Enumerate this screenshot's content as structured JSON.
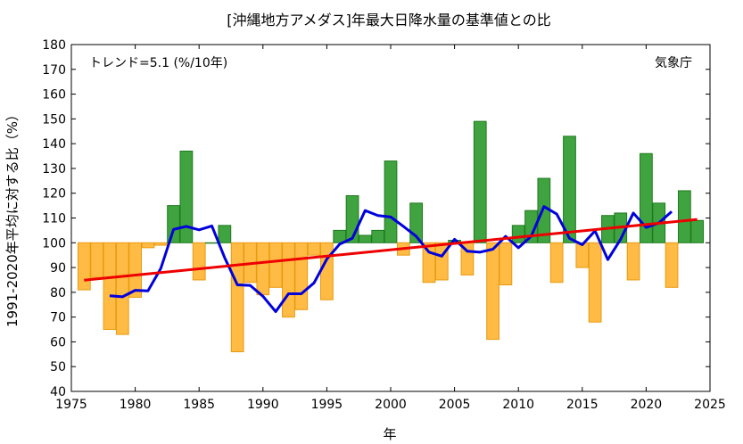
{
  "chart_data": {
    "type": "bar",
    "title": "[沖縄地方アメダス]年最大日降水量の基準値との比",
    "xlabel": "年",
    "ylabel": "1991-2020年平均に対する比（%）",
    "trend_label": "トレンド=5.1 (%/10年)",
    "source_label": "気象庁",
    "xlim": [
      1975,
      2025
    ],
    "ylim": [
      40,
      180
    ],
    "baseline": 100,
    "x_ticks": [
      1975,
      1980,
      1985,
      1990,
      1995,
      2000,
      2005,
      2010,
      2015,
      2020,
      2025
    ],
    "y_ticks": [
      40,
      50,
      60,
      70,
      80,
      90,
      100,
      110,
      120,
      130,
      140,
      150,
      160,
      170,
      180
    ],
    "grid": false,
    "colors": {
      "above": "#3fa33f",
      "above_edge": "#1f7a1f",
      "below": "#ffbb44",
      "below_edge": "#e89a10",
      "moving_average": "#0000dd",
      "trend": "#ee0000"
    },
    "years": [
      1976,
      1977,
      1978,
      1979,
      1980,
      1981,
      1982,
      1983,
      1984,
      1985,
      1986,
      1987,
      1988,
      1989,
      1990,
      1991,
      1992,
      1993,
      1994,
      1995,
      1996,
      1997,
      1998,
      1999,
      2000,
      2001,
      2002,
      2003,
      2004,
      2005,
      2006,
      2007,
      2008,
      2009,
      2010,
      2011,
      2012,
      2013,
      2014,
      2015,
      2016,
      2017,
      2018,
      2019,
      2020,
      2021,
      2022,
      2023,
      2024
    ],
    "values": [
      81,
      86,
      65,
      63,
      78,
      98,
      99,
      115,
      137,
      85,
      100,
      107,
      56,
      84,
      79,
      82,
      70,
      73,
      95,
      77,
      105,
      119,
      103,
      105,
      133,
      95,
      116,
      84,
      85,
      101,
      87,
      149,
      61,
      83,
      107,
      113,
      126,
      84,
      143,
      90,
      68,
      111,
      112,
      85,
      136,
      116,
      82,
      121,
      109
    ],
    "moving_average": {
      "years": [
        1978,
        1979,
        1980,
        1981,
        1982,
        1983,
        1984,
        1985,
        1986,
        1987,
        1988,
        1989,
        1990,
        1991,
        1992,
        1993,
        1994,
        1995,
        1996,
        1997,
        1998,
        1999,
        2000,
        2001,
        2002,
        2003,
        2004,
        2005,
        2006,
        2007,
        2008,
        2009,
        2010,
        2011,
        2012,
        2013,
        2014,
        2015,
        2016,
        2017,
        2018,
        2019,
        2020,
        2021,
        2022
      ],
      "values": [
        78.6,
        78.2,
        80.8,
        80.6,
        89.6,
        105.4,
        106.6,
        105.2,
        106.8,
        94.0,
        83.0,
        82.8,
        78.4,
        72.2,
        79.4,
        79.4,
        83.8,
        93.4,
        99.4,
        101.8,
        113.0,
        111.0,
        110.4,
        106.6,
        102.6,
        96.2,
        94.6,
        101.4,
        96.6,
        96.2,
        97.4,
        102.6,
        98.0,
        102.6,
        114.6,
        111.6,
        101.8,
        99.2,
        104.8,
        93.2,
        101.4,
        112.0,
        106.2,
        108.0,
        112.6
      ]
    },
    "trend_line": {
      "x": [
        1976,
        2024
      ],
      "y": [
        84.9,
        109.4
      ]
    }
  }
}
